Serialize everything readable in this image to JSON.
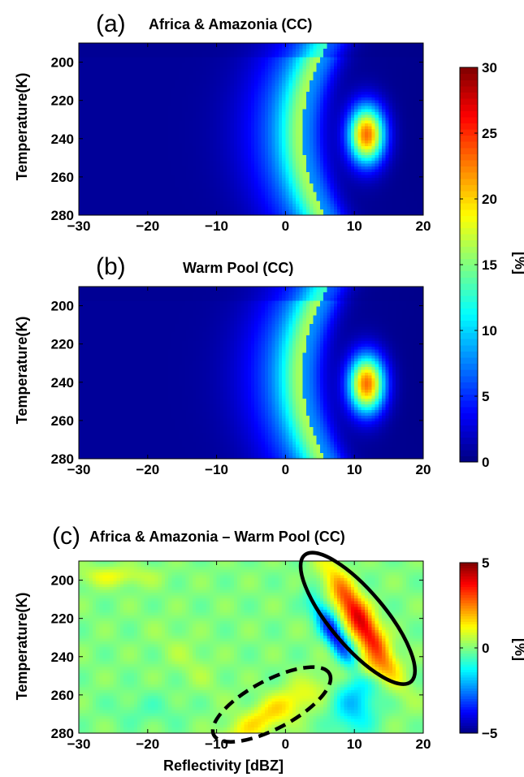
{
  "chart_data": [
    {
      "type": "heatmap",
      "panel_label": "(a)",
      "title": "Africa & Amazonia (CC)",
      "xlabel": "",
      "ylabel": "Temperature(K)",
      "xlim": [
        -30,
        20
      ],
      "ylim": [
        190,
        280
      ],
      "xticks": [
        "−30",
        "−20",
        "−10",
        "0",
        "10",
        "20"
      ],
      "yticks": [
        "200",
        "220",
        "240",
        "260",
        "280"
      ],
      "y_reversed": true,
      "colormap": "jet",
      "colorbar": {
        "min": 0,
        "max": 30,
        "label": "[%]",
        "ticks": [
          "0",
          "5",
          "10",
          "15",
          "20",
          "25",
          "30"
        ]
      },
      "features": [
        {
          "kind": "peak",
          "x": 11.5,
          "y": 238,
          "value": 29
        },
        {
          "kind": "arc_ridge",
          "x_at_top": 3,
          "y_top": 195,
          "x_at_bottom": 7,
          "y_bottom": 278,
          "value": 10
        }
      ]
    },
    {
      "type": "heatmap",
      "panel_label": "(b)",
      "title": "Warm Pool (CC)",
      "xlabel": "",
      "ylabel": "Temperature(K)",
      "xlim": [
        -30,
        20
      ],
      "ylim": [
        190,
        280
      ],
      "xticks": [
        "−30",
        "−20",
        "−10",
        "0",
        "10",
        "20"
      ],
      "yticks": [
        "200",
        "220",
        "240",
        "260",
        "280"
      ],
      "y_reversed": true,
      "colormap": "jet",
      "colorbar": "shared with (a)",
      "features": [
        {
          "kind": "peak",
          "x": 11.5,
          "y": 240,
          "value": 28
        },
        {
          "kind": "arc_ridge",
          "x_at_top": 3,
          "y_top": 195,
          "x_at_bottom": 7,
          "y_bottom": 278,
          "value": 10
        }
      ]
    },
    {
      "type": "heatmap",
      "panel_label": "(c)",
      "title": "Africa & Amazonia – Warm Pool  (CC)",
      "xlabel": "Reflectivity [dBZ]",
      "ylabel": "Temperature(K)",
      "xlim": [
        -30,
        20
      ],
      "ylim": [
        190,
        280
      ],
      "xticks": [
        "−30",
        "−20",
        "−10",
        "0",
        "10",
        "20"
      ],
      "yticks": [
        "200",
        "220",
        "240",
        "260",
        "280"
      ],
      "y_reversed": true,
      "colormap": "jet",
      "colorbar": {
        "min": -5,
        "max": 5,
        "label": "[%]",
        "ticks": [
          "−5",
          "0",
          "5"
        ]
      },
      "features": [
        {
          "kind": "positive_band",
          "x_from": 6,
          "y_from": 205,
          "x_to": 14,
          "y_to": 240,
          "value": 4.5
        },
        {
          "kind": "negative_band",
          "x_from": 3,
          "y_from": 210,
          "x_to": 9,
          "y_to": 235,
          "value": -4
        },
        {
          "kind": "negative_lobe",
          "x": 11,
          "y": 265,
          "value": -2.5
        },
        {
          "kind": "positive_patch",
          "x": -26,
          "y": 198,
          "value": 1.5
        },
        {
          "kind": "positive_patch",
          "x": -3,
          "y": 270,
          "value": 1.8
        }
      ],
      "annotations": [
        {
          "shape": "ellipse",
          "style": "solid",
          "cx": 10.5,
          "cy": 220,
          "rx": 12,
          "ry": 4,
          "angle_deg": 50
        },
        {
          "shape": "ellipse",
          "style": "dashed",
          "cx": -2,
          "cy": 265,
          "rx": 9.5,
          "ry": 3.5,
          "angle_deg": -28
        }
      ]
    }
  ]
}
